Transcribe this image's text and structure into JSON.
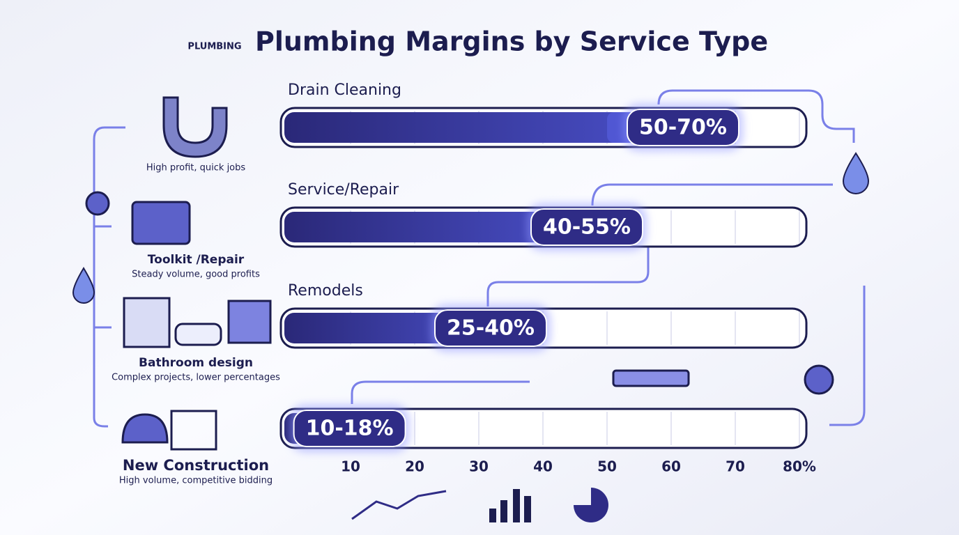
{
  "logo_text": "PLUMBING",
  "chart_data": {
    "type": "range-bar",
    "title": "Plumbing Margins by Service Type",
    "categories": [
      "Drain Cleaning",
      "Service/Repair",
      "Remodels",
      "New Construction"
    ],
    "values": [
      [
        50,
        70
      ],
      [
        40,
        55
      ],
      [
        25,
        40
      ],
      [
        10,
        18
      ]
    ],
    "value_labels": [
      "50-70%",
      "40-55%",
      "25-40%",
      "10-18%"
    ],
    "xlim": [
      0,
      80
    ],
    "xticks": [
      10,
      20,
      30,
      40,
      50,
      60,
      70,
      {
        "value": 80,
        "label": "80%"
      }
    ],
    "grid": true,
    "color": "#2f2c86",
    "highlight_color": "#5a62e6",
    "notes": [
      {
        "text": "High profit, quick jobs"
      },
      {
        "heading": "Toolkit /Repair",
        "text": "Steady volume, good profits"
      },
      {
        "heading": "Bathroom design",
        "text": "Complex projects, lower percentages"
      },
      {
        "text": "High volume, competitive bidding"
      }
    ]
  }
}
